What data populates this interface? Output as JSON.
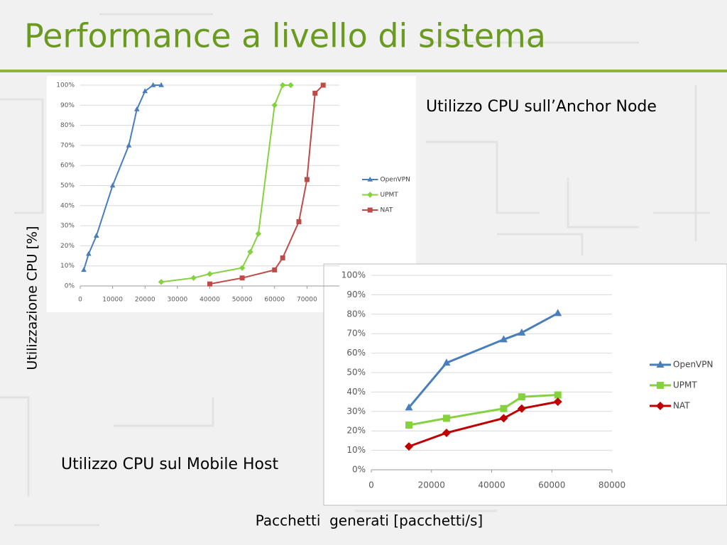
{
  "slide": {
    "title": "Performance a livello di sistema",
    "caption_anchor": "Utilizzo CPU sull’Anchor Node",
    "caption_mobile": "Utilizzo CPU sul Mobile Host",
    "ylabel": "Utilizzazione CPU [%]",
    "xlabel": "Pacchetti  generati [pacchetti/s]"
  },
  "chart_data": [
    {
      "type": "line",
      "xlim": [
        0,
        80000
      ],
      "xticks": [
        0,
        10000,
        20000,
        30000,
        40000,
        50000,
        60000,
        70000
      ],
      "ylim": [
        0,
        100
      ],
      "yticks": [
        {
          "value": 0,
          "label": "0%"
        },
        {
          "value": 10,
          "label": "10%"
        },
        {
          "value": 20,
          "label": "20%"
        },
        {
          "value": 30,
          "label": "30%"
        },
        {
          "value": 40,
          "label": "40%"
        },
        {
          "value": 50,
          "label": "50%"
        },
        {
          "value": 60,
          "label": "60%"
        },
        {
          "value": 70,
          "label": "70%"
        },
        {
          "value": 80,
          "label": "80%"
        },
        {
          "value": 90,
          "label": "90%"
        },
        {
          "value": 100,
          "label": "100%"
        }
      ],
      "grid": true,
      "legend": "right",
      "series": [
        {
          "name": "OpenVPN",
          "color": "#4a7ebb",
          "marker": "triangle",
          "x": [
            1100,
            2600,
            5000,
            10000,
            15000,
            17500,
            20000,
            22500,
            25000
          ],
          "values": [
            8,
            16,
            25,
            50,
            70,
            88,
            97,
            100,
            100
          ]
        },
        {
          "name": "UPMT",
          "color": "#86d13f",
          "marker": "diamond",
          "x": [
            25000,
            35000,
            40000,
            50000,
            52500,
            55000,
            60000,
            62500,
            65000
          ],
          "values": [
            2,
            4,
            6,
            9,
            17,
            26,
            90,
            100,
            100
          ]
        },
        {
          "name": "NAT",
          "color": "#be4b48",
          "marker": "square",
          "x": [
            40000,
            50000,
            60000,
            62500,
            67500,
            70000,
            72500,
            75000
          ],
          "values": [
            1,
            4,
            8,
            14,
            32,
            53,
            96,
            100
          ]
        }
      ]
    },
    {
      "type": "line",
      "xlim": [
        0,
        80000
      ],
      "xticks": [
        0,
        20000,
        40000,
        60000,
        80000
      ],
      "ylim": [
        0,
        100
      ],
      "yticks": [
        {
          "value": 0,
          "label": "0%"
        },
        {
          "value": 10,
          "label": "10%"
        },
        {
          "value": 20,
          "label": "20%"
        },
        {
          "value": 30,
          "label": "30%"
        },
        {
          "value": 40,
          "label": "40%"
        },
        {
          "value": 50,
          "label": "50%"
        },
        {
          "value": 60,
          "label": "60%"
        },
        {
          "value": 70,
          "label": "70%"
        },
        {
          "value": 80,
          "label": "80%"
        },
        {
          "value": 90,
          "label": "90%"
        },
        {
          "value": 100,
          "label": "100%"
        }
      ],
      "grid": true,
      "legend": "right",
      "series": [
        {
          "name": "OpenVPN",
          "color": "#4a7ebb",
          "marker": "triangle",
          "x": [
            12500,
            25000,
            44000,
            50000,
            62000
          ],
          "values": [
            32,
            55,
            67,
            70.5,
            80.5
          ]
        },
        {
          "name": "UPMT",
          "color": "#86d13f",
          "marker": "square",
          "x": [
            12500,
            25000,
            44000,
            50000,
            62000
          ],
          "values": [
            23,
            26.5,
            31.5,
            37.5,
            38.5
          ]
        },
        {
          "name": "NAT",
          "color": "#c00000",
          "marker": "diamond",
          "x": [
            12500,
            25000,
            44000,
            50000,
            62000
          ],
          "values": [
            12,
            19,
            26.5,
            31.5,
            35
          ]
        }
      ]
    }
  ]
}
